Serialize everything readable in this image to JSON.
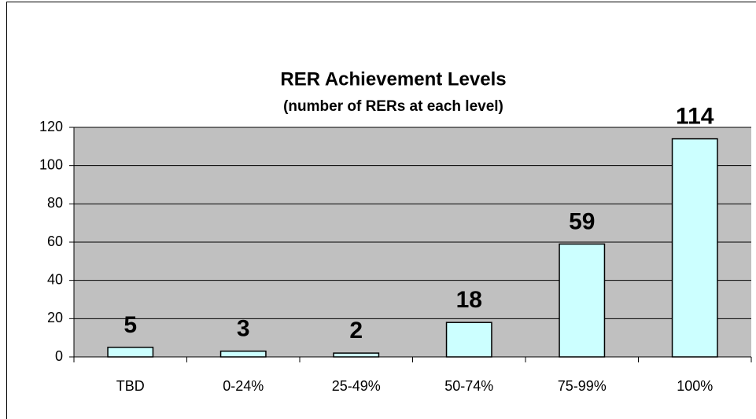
{
  "chart_data": {
    "type": "bar",
    "title": "RER Achievement Levels",
    "subtitle": "(number of RERs at each level)",
    "categories": [
      "TBD",
      "0-24%",
      "25-49%",
      "50-74%",
      "75-99%",
      "100%"
    ],
    "values": [
      5,
      3,
      2,
      18,
      59,
      114
    ],
    "color": "#ccffff",
    "ylim": [
      0,
      120
    ],
    "yticks": [
      0,
      20,
      40,
      60,
      80,
      100,
      120
    ],
    "grid": true
  }
}
